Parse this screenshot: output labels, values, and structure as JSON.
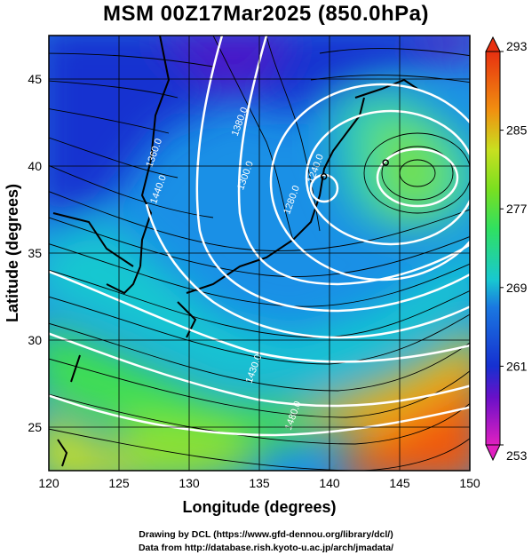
{
  "title": "MSM 00Z17Mar2025 (850.0hPa)",
  "xaxis": {
    "label": "Longitude (degrees)",
    "ticks": [
      120,
      125,
      130,
      135,
      140,
      145,
      150
    ],
    "range": [
      120,
      150
    ]
  },
  "yaxis": {
    "label": "Latitude  (degrees)",
    "ticks": [
      25,
      30,
      35,
      40,
      45
    ],
    "range": [
      22.5,
      47.5
    ]
  },
  "colorbar": {
    "min": 253,
    "max": 293,
    "ticks": [
      253,
      261,
      269,
      277,
      285,
      293
    ]
  },
  "contour_labels": [
    {
      "text": "1360.0",
      "lon": 127.7,
      "lat": 40.7
    },
    {
      "text": "1380.0",
      "lon": 133.8,
      "lat": 42.5
    },
    {
      "text": "1440.0",
      "lon": 128.0,
      "lat": 38.6
    },
    {
      "text": "1300.0",
      "lon": 134.2,
      "lat": 39.4
    },
    {
      "text": "1280.0",
      "lon": 137.5,
      "lat": 38.0
    },
    {
      "text": "1240.0",
      "lon": 139.2,
      "lat": 39.8
    },
    {
      "text": "1430.0",
      "lon": 134.8,
      "lat": 28.3
    },
    {
      "text": "1480.0",
      "lon": 137.6,
      "lat": 25.6
    }
  ],
  "lows": [
    {
      "lon": 139.6,
      "lat": 39.4
    },
    {
      "lon": 144.0,
      "lat": 40.2
    }
  ],
  "credits": [
    "Drawing by DCL (https://www.gfd-dennou.org/library/dcl/)",
    "Data from http://database.rish.kyoto-u.ac.jp/arch/jmadata/"
  ],
  "colors": {
    "cold": "#1636d6",
    "cool": "#1aa0e8",
    "mid": "#2fe080",
    "warm": "#d8e020",
    "hot": "#f06a10",
    "contour": "#ffffff"
  }
}
